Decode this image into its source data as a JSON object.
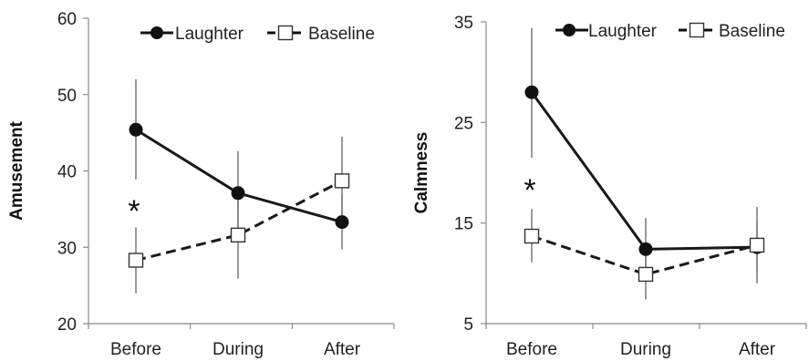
{
  "chart_data": [
    {
      "type": "line",
      "ylabel": "Amusement",
      "xlabel": "",
      "categories": [
        "Before",
        "During",
        "After"
      ],
      "ylim": [
        20,
        60
      ],
      "yticks": [
        20,
        30,
        40,
        50,
        60
      ],
      "legend_position": "top",
      "grid": false,
      "series": [
        {
          "name": "Laughter",
          "values": [
            45.4,
            37.1,
            33.3
          ],
          "error_low": [
            38.9,
            31.3,
            29.7
          ],
          "error_high": [
            52.0,
            42.6,
            36.9
          ],
          "style": "solid",
          "marker": "filled-circle"
        },
        {
          "name": "Baseline",
          "values": [
            28.3,
            31.6,
            38.7
          ],
          "error_low": [
            24.0,
            25.9,
            32.9
          ],
          "error_high": [
            32.6,
            37.3,
            44.5
          ],
          "style": "dashed",
          "marker": "open-square"
        }
      ],
      "annotations": [
        {
          "text": "*",
          "category": "Before"
        }
      ]
    },
    {
      "type": "line",
      "ylabel": "Calmness",
      "xlabel": "",
      "categories": [
        "Before",
        "During",
        "After"
      ],
      "ylim": [
        5,
        35
      ],
      "yticks": [
        5,
        15,
        25,
        35
      ],
      "legend_position": "top",
      "grid": false,
      "series": [
        {
          "name": "Laughter",
          "values": [
            28.0,
            12.4,
            12.6
          ],
          "error_low": [
            21.5,
            9.3,
            10.1
          ],
          "error_high": [
            34.4,
            15.5,
            15.2
          ],
          "style": "solid",
          "marker": "filled-circle"
        },
        {
          "name": "Baseline",
          "values": [
            13.7,
            9.9,
            12.8
          ],
          "error_low": [
            11.1,
            7.4,
            9.0
          ],
          "error_high": [
            16.4,
            12.4,
            16.6
          ],
          "style": "dashed",
          "marker": "open-square"
        }
      ],
      "annotations": [
        {
          "text": "*",
          "category": "Before"
        }
      ]
    }
  ]
}
